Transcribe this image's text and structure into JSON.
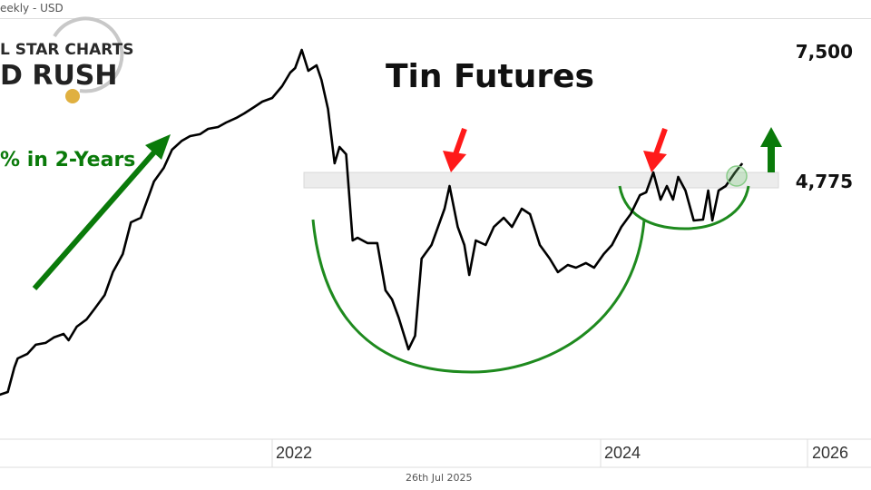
{
  "header": {
    "text": "eekly - USD"
  },
  "footer": {
    "date": "26th Jul 2025"
  },
  "logo": {
    "line1": "L STAR CHARTS",
    "line2": "D RUSH"
  },
  "annotations": {
    "gain_text": "% in 2-Years"
  },
  "colors": {
    "line": "#000000",
    "arc": "#1e8a1e",
    "arrow_green": "#0a7a0a",
    "arrow_red": "#ff1a1a",
    "band": "#ececec"
  },
  "chart_data": {
    "type": "line",
    "title": "Tin Futures",
    "y_scale": "log",
    "grid": false,
    "y_tick_labels": [
      "7,500",
      "4,775"
    ],
    "y_ticks": [
      7500,
      4775
    ],
    "x_tick_labels": [
      "2022",
      "2024",
      "2026"
    ],
    "x_ticks": [
      2022,
      2024,
      2026
    ],
    "resistance_level": 4775,
    "series": [
      {
        "x": [
          2020.34,
          2020.39,
          2020.43,
          2020.45,
          2020.51,
          2020.56,
          2020.62,
          2020.67,
          2020.73,
          2020.76,
          2020.81,
          2020.87,
          2020.92,
          2020.98,
          2021.03,
          2021.09,
          2021.14,
          2021.2,
          2021.25,
          2021.28,
          2021.34,
          2021.39,
          2021.45,
          2021.5,
          2021.56,
          2021.61,
          2021.67,
          2021.72,
          2021.78,
          2021.83,
          2021.89,
          2021.94,
          2022.0,
          2022.06,
          2022.11,
          2022.14,
          2022.18,
          2022.22,
          2022.27,
          2022.3,
          2022.34,
          2022.38,
          2022.41,
          2022.45,
          2022.49,
          2022.52,
          2022.58,
          2022.64,
          2022.69,
          2022.73,
          2022.77,
          2022.83,
          2022.87,
          2022.91,
          2022.97,
          2023.02,
          2023.05,
          2023.08,
          2023.13,
          2023.17,
          2023.2,
          2023.24,
          2023.3,
          2023.35,
          2023.41,
          2023.46,
          2023.52,
          2023.57,
          2023.63,
          2023.69,
          2023.74,
          2023.8,
          2023.85,
          2023.91,
          2023.96,
          2024.03,
          2024.11,
          2024.2,
          2024.29,
          2024.38,
          2024.44,
          2024.51,
          2024.58,
          2024.64,
          2024.7,
          2024.75,
          2024.82,
          2024.9,
          2024.99,
          2025.04,
          2025.08,
          2025.14,
          2025.21,
          2025.3,
          2025.37
        ],
        "y": [
          2254,
          2276,
          2480,
          2560,
          2602,
          2686,
          2703,
          2755,
          2790,
          2728,
          2862,
          2936,
          3050,
          3198,
          3464,
          3691,
          4125,
          4191,
          4537,
          4760,
          4992,
          5320,
          5491,
          5580,
          5617,
          5724,
          5760,
          5853,
          5945,
          6042,
          6178,
          6297,
          6377,
          6646,
          6972,
          7083,
          7549,
          7015,
          7152,
          6797,
          6139,
          5072,
          5371,
          5236,
          3871,
          3908,
          3835,
          3835,
          3250,
          3148,
          2954,
          2643,
          2771,
          3632,
          3810,
          4125,
          4327,
          4685,
          4059,
          3810,
          3430,
          3871,
          3810,
          4059,
          4191,
          4059,
          4327,
          4245,
          3810,
          3632,
          3464,
          3552,
          3519,
          3576,
          3519,
          3691,
          3810,
          4059,
          4245,
          4537,
          4583,
          4914,
          4466,
          4685,
          4466,
          4836,
          4611,
          4151,
          4165,
          4611,
          4151,
          4611,
          4685,
          4914,
          5072
        ]
      }
    ]
  }
}
